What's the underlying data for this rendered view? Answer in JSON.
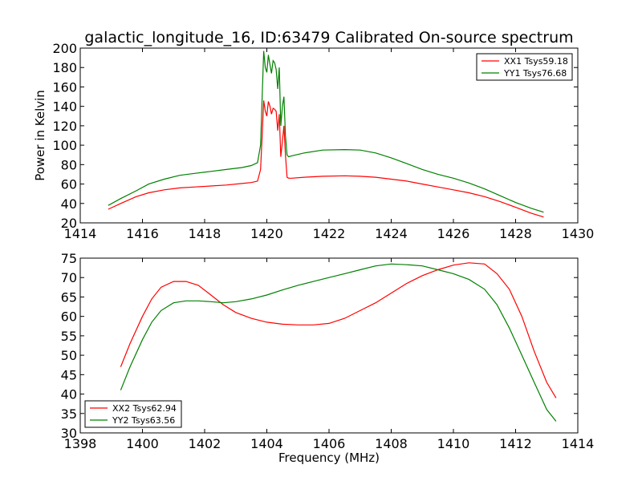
{
  "title": "galactic_longitude_16, ID:63479 Calibrated On-source spectrum",
  "colors": {
    "xx": "#ff0000",
    "yy": "#008000",
    "axes": "#000000",
    "background": "#ffffff"
  },
  "chart_data": [
    {
      "type": "line",
      "ylabel": "Power in Kelvin",
      "xlabel": "",
      "xlim": [
        1414,
        1430
      ],
      "ylim": [
        20,
        200
      ],
      "xticks": [
        1414,
        1416,
        1418,
        1420,
        1422,
        1424,
        1426,
        1428,
        1430
      ],
      "yticks": [
        20,
        40,
        60,
        80,
        100,
        120,
        140,
        160,
        180,
        200
      ],
      "grid": false,
      "legend_position": "top-right",
      "series": [
        {
          "name": "XX1 Tsys59.18",
          "color": "#ff0000",
          "x": [
            1414.9,
            1415.3,
            1415.8,
            1416.2,
            1416.7,
            1417.2,
            1417.7,
            1418.2,
            1418.7,
            1419.2,
            1419.5,
            1419.7,
            1419.8,
            1419.85,
            1419.9,
            1419.95,
            1420.0,
            1420.05,
            1420.1,
            1420.15,
            1420.2,
            1420.25,
            1420.3,
            1420.35,
            1420.4,
            1420.45,
            1420.5,
            1420.55,
            1420.6,
            1420.65,
            1420.7,
            1420.8,
            1421.2,
            1421.8,
            1422.5,
            1423.0,
            1423.5,
            1424.0,
            1424.5,
            1425.0,
            1425.5,
            1426.0,
            1426.5,
            1427.0,
            1427.5,
            1428.0,
            1428.5,
            1428.9
          ],
          "y": [
            34,
            40,
            47,
            51,
            54,
            56,
            57,
            58,
            59,
            60.5,
            61.5,
            63,
            75,
            110,
            146,
            135,
            130,
            145,
            140,
            132,
            138,
            137,
            135,
            115,
            132,
            88,
            104,
            120,
            90,
            67,
            66,
            66,
            67,
            68,
            68.5,
            68,
            67,
            65,
            63,
            60,
            57,
            54,
            51,
            47,
            42,
            36,
            30,
            26
          ]
        },
        {
          "name": "YY1 Tsys76.68",
          "color": "#008000",
          "x": [
            1414.9,
            1415.3,
            1415.8,
            1416.2,
            1416.7,
            1417.2,
            1417.7,
            1418.2,
            1418.7,
            1419.2,
            1419.5,
            1419.7,
            1419.8,
            1419.85,
            1419.9,
            1419.95,
            1420.0,
            1420.05,
            1420.1,
            1420.15,
            1420.2,
            1420.25,
            1420.3,
            1420.35,
            1420.4,
            1420.45,
            1420.5,
            1420.55,
            1420.6,
            1420.65,
            1420.7,
            1420.8,
            1421.2,
            1421.8,
            1422.5,
            1423.0,
            1423.5,
            1424.0,
            1424.5,
            1425.0,
            1425.5,
            1426.0,
            1426.5,
            1427.0,
            1427.5,
            1428.0,
            1428.5,
            1428.9
          ],
          "y": [
            38,
            45,
            53,
            60,
            65,
            69,
            71,
            73,
            75,
            77,
            79,
            82,
            100,
            150,
            197,
            180,
            175,
            193,
            183,
            174,
            187,
            185,
            178,
            158,
            180,
            120,
            140,
            150,
            110,
            90,
            88,
            89,
            92,
            95,
            95.5,
            95,
            92,
            87,
            81,
            75,
            70,
            66,
            61,
            55,
            48,
            41,
            35,
            31
          ]
        }
      ]
    },
    {
      "type": "line",
      "ylabel": "",
      "xlabel": "Frequency (MHz)",
      "xlim": [
        1398,
        1414
      ],
      "ylim": [
        30,
        75
      ],
      "xticks": [
        1398,
        1400,
        1402,
        1404,
        1406,
        1408,
        1410,
        1412,
        1414
      ],
      "yticks": [
        30,
        35,
        40,
        45,
        50,
        55,
        60,
        65,
        70,
        75
      ],
      "grid": false,
      "legend_position": "bottom-left",
      "series": [
        {
          "name": "XX2 Tsys62.94",
          "color": "#ff0000",
          "x": [
            1399.3,
            1399.6,
            1400.0,
            1400.3,
            1400.6,
            1401.0,
            1401.4,
            1401.8,
            1402.2,
            1402.6,
            1403.0,
            1403.5,
            1404.0,
            1404.5,
            1405.0,
            1405.5,
            1406.0,
            1406.5,
            1407.0,
            1407.5,
            1408.0,
            1408.5,
            1409.0,
            1409.5,
            1410.0,
            1410.5,
            1411.0,
            1411.4,
            1411.8,
            1412.2,
            1412.6,
            1413.0,
            1413.3
          ],
          "y": [
            47,
            53,
            60,
            64.5,
            67.5,
            69,
            69,
            68,
            65.5,
            63,
            61,
            59.5,
            58.5,
            58,
            57.8,
            57.8,
            58.2,
            59.5,
            61.5,
            63.5,
            66,
            68.5,
            70.5,
            72,
            73.2,
            73.8,
            73.5,
            71,
            67,
            60,
            51,
            43,
            39
          ]
        },
        {
          "name": "YY2 Tsys63.56",
          "color": "#008000",
          "x": [
            1399.3,
            1399.6,
            1400.0,
            1400.3,
            1400.6,
            1401.0,
            1401.4,
            1401.8,
            1402.2,
            1402.6,
            1403.0,
            1403.5,
            1404.0,
            1404.5,
            1405.0,
            1405.5,
            1406.0,
            1406.5,
            1407.0,
            1407.5,
            1408.0,
            1408.5,
            1409.0,
            1409.5,
            1410.0,
            1410.5,
            1411.0,
            1411.4,
            1411.8,
            1412.2,
            1412.6,
            1413.0,
            1413.3
          ],
          "y": [
            41,
            47,
            54,
            58.5,
            61.5,
            63.5,
            64,
            64,
            63.8,
            63.5,
            63.8,
            64.5,
            65.5,
            66.8,
            68,
            69,
            70,
            71,
            72,
            73,
            73.5,
            73.3,
            73,
            72,
            71,
            69.5,
            67,
            63,
            57,
            50,
            43,
            36,
            33
          ]
        }
      ]
    }
  ]
}
